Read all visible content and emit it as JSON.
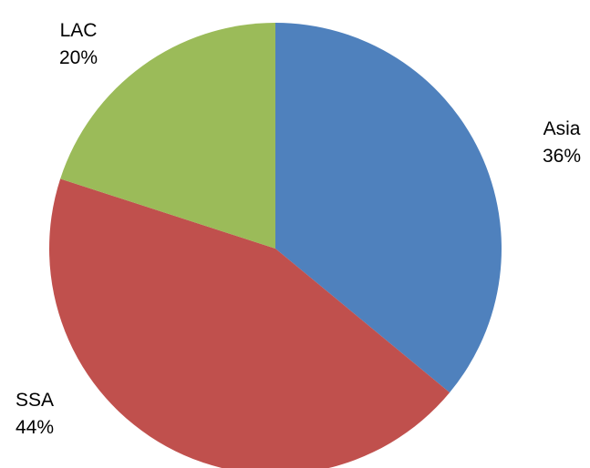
{
  "chart_data": {
    "type": "pie",
    "title": "",
    "slices": [
      {
        "label": "Asia",
        "value": 36,
        "display": "36%",
        "color": "#4F81BD"
      },
      {
        "label": "SSA",
        "value": 44,
        "display": "44%",
        "color": "#C0504D"
      },
      {
        "label": "LAC",
        "value": 20,
        "display": "20%",
        "color": "#9BBB59"
      }
    ],
    "start_angle": "12 o'clock",
    "direction": "clockwise",
    "legend": "none"
  }
}
